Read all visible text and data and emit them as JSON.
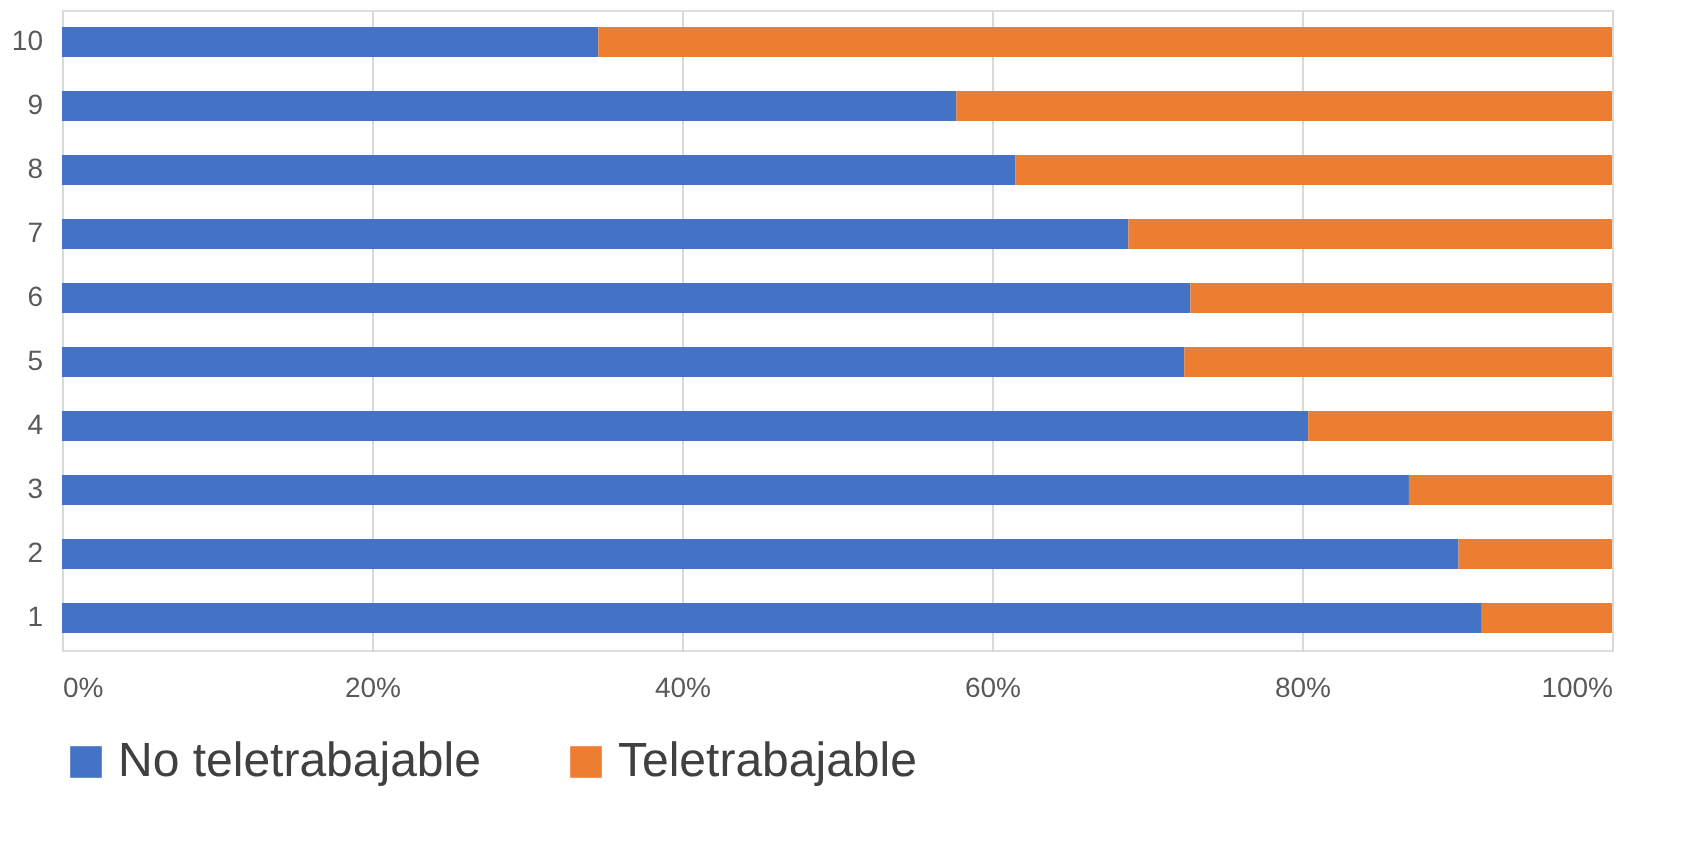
{
  "chart_data": {
    "type": "bar",
    "orientation": "horizontal",
    "stacked": true,
    "categories": [
      "10",
      "9",
      "8",
      "7",
      "6",
      "5",
      "4",
      "3",
      "2",
      "1"
    ],
    "series": [
      {
        "name": "No teletrabajable",
        "color": "#4472c4",
        "values": [
          34.6,
          57.7,
          61.5,
          68.8,
          72.8,
          72.4,
          80.4,
          86.9,
          90.1,
          91.6
        ]
      },
      {
        "name": "Teletrabajable",
        "color": "#ed7d31",
        "values": [
          65.4,
          42.3,
          38.5,
          31.2,
          27.2,
          27.6,
          19.6,
          13.1,
          9.9,
          8.4
        ]
      }
    ],
    "xlim": [
      0,
      100
    ],
    "xticks": [
      {
        "value": 0,
        "label": "0%"
      },
      {
        "value": 20,
        "label": "20%"
      },
      {
        "value": 40,
        "label": "40%"
      },
      {
        "value": 60,
        "label": "60%"
      },
      {
        "value": 80,
        "label": "80%"
      },
      {
        "value": 100,
        "label": "100%"
      }
    ],
    "grid": "x",
    "legend": "bottom"
  }
}
